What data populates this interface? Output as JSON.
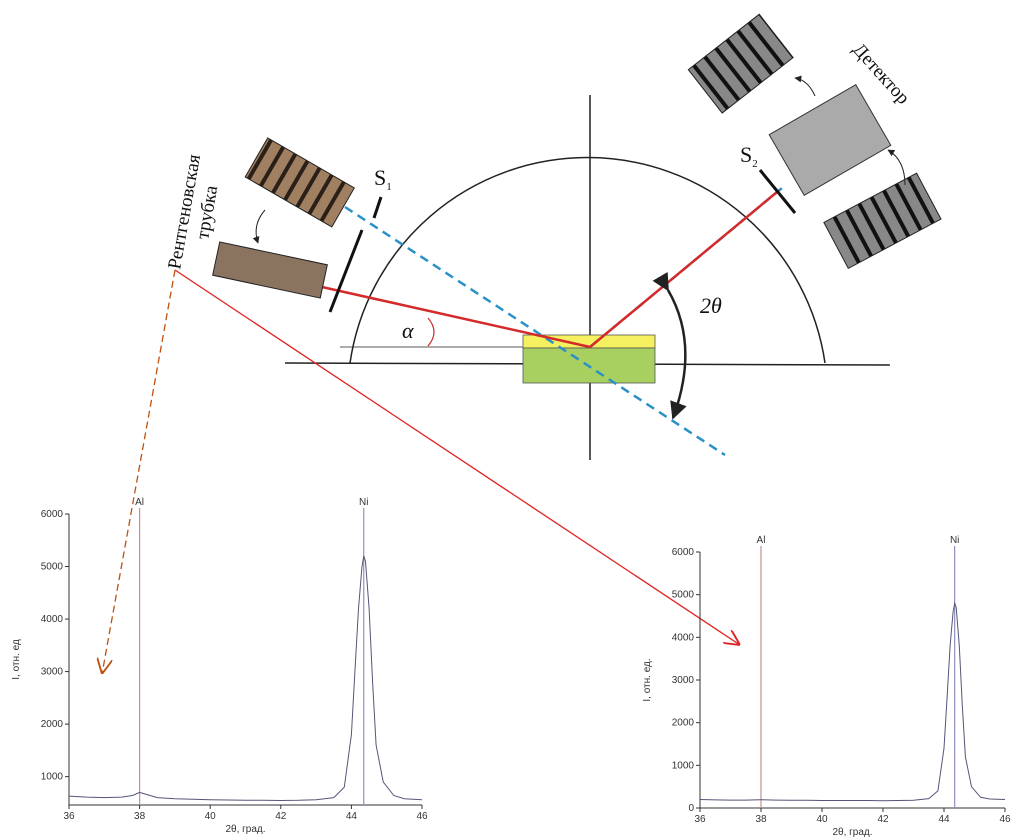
{
  "diagram": {
    "tube_label": [
      "Рентгеновская",
      "трубка"
    ],
    "detector_label": "Детектор",
    "s1": "S",
    "s1_sub": "1",
    "s2": "S",
    "s2_sub": "2",
    "alpha": "α",
    "two_theta": "2θ"
  },
  "chart_data": [
    {
      "type": "line",
      "x_label": "2θ, град.",
      "y_label": "I, отн. ед",
      "x": [
        36,
        36.5,
        37,
        37.5,
        37.8,
        38,
        38.2,
        38.5,
        39,
        39.5,
        40,
        40.5,
        41,
        41.5,
        42,
        42.5,
        43,
        43.5,
        43.8,
        44,
        44.1,
        44.2,
        44.3,
        44.35,
        44.4,
        44.5,
        44.6,
        44.7,
        44.9,
        45.2,
        45.5,
        46
      ],
      "series": [
        {
          "color": "#555577",
          "values": [
            630,
            610,
            600,
            610,
            640,
            700,
            660,
            600,
            580,
            570,
            560,
            555,
            550,
            550,
            545,
            550,
            560,
            600,
            800,
            1800,
            3000,
            4200,
            5000,
            5200,
            5100,
            4200,
            2800,
            1600,
            900,
            640,
            580,
            560
          ]
        }
      ],
      "markers": [
        {
          "label": "Al",
          "x": 38,
          "color": "#c89090"
        },
        {
          "label": "Ni",
          "x": 44.35,
          "color": "#9090c0"
        }
      ],
      "xlim": [
        36,
        46
      ],
      "xticks": [
        36,
        38,
        40,
        42,
        44,
        46
      ],
      "ylim": [
        460,
        6000
      ],
      "yticks": [
        1000,
        2000,
        3000,
        4000,
        5000,
        6000
      ]
    },
    {
      "type": "line",
      "x_label": "2θ, град.",
      "y_label": "I, отн. ед.",
      "x": [
        36,
        36.5,
        37,
        37.5,
        37.8,
        38,
        38.2,
        38.5,
        39,
        39.5,
        40,
        40.5,
        41,
        41.5,
        42,
        42.5,
        43,
        43.5,
        43.8,
        44,
        44.1,
        44.2,
        44.3,
        44.35,
        44.4,
        44.5,
        44.6,
        44.7,
        44.9,
        45.2,
        45.5,
        46
      ],
      "series": [
        {
          "color": "#555577",
          "values": [
            200,
            190,
            185,
            185,
            190,
            195,
            190,
            185,
            180,
            180,
            175,
            175,
            175,
            175,
            170,
            175,
            180,
            220,
            400,
            1400,
            2600,
            3800,
            4600,
            4800,
            4700,
            3800,
            2400,
            1200,
            500,
            250,
            210,
            200
          ]
        }
      ],
      "markers": [
        {
          "label": "Al",
          "x": 38,
          "color": "#c89090"
        },
        {
          "label": "Ni",
          "x": 44.35,
          "color": "#9090c0"
        }
      ],
      "xlim": [
        36,
        46
      ],
      "xticks": [
        36,
        38,
        40,
        42,
        44,
        46
      ],
      "ylim": [
        0,
        6000
      ],
      "yticks": [
        0,
        1000,
        2000,
        3000,
        4000,
        5000,
        6000
      ]
    }
  ]
}
